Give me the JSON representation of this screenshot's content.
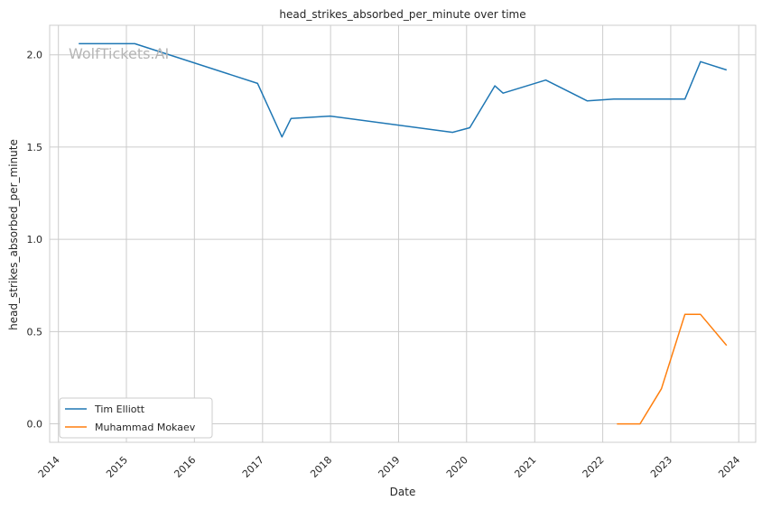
{
  "watermark": "WolfTickets.AI",
  "chart_data": {
    "type": "line",
    "title": "head_strikes_absorbed_per_minute over time",
    "xlabel": "Date",
    "ylabel": "head_strikes_absorbed_per_minute",
    "x_ticks": [
      "2014",
      "2015",
      "2016",
      "2017",
      "2018",
      "2019",
      "2020",
      "2021",
      "2022",
      "2023",
      "2024"
    ],
    "y_ticks": [
      "0.0",
      "0.5",
      "1.0",
      "1.5",
      "2.0"
    ],
    "xlim": [
      "2013-11-15",
      "2024-04-01"
    ],
    "ylim": [
      -0.1,
      2.16
    ],
    "grid": true,
    "legend_position": "lower-left",
    "series": [
      {
        "name": "Tim Elliott",
        "color": "#1f77b4",
        "points": [
          {
            "x": "2014-04-20",
            "y": 2.06
          },
          {
            "x": "2015-02-15",
            "y": 2.06
          },
          {
            "x": "2016-12-05",
            "y": 1.845
          },
          {
            "x": "2017-04-15",
            "y": 1.555
          },
          {
            "x": "2017-06-03",
            "y": 1.655
          },
          {
            "x": "2017-12-30",
            "y": 1.668
          },
          {
            "x": "2019-10-18",
            "y": 1.58
          },
          {
            "x": "2020-01-18",
            "y": 1.605
          },
          {
            "x": "2020-06-01",
            "y": 1.832
          },
          {
            "x": "2020-07-15",
            "y": 1.792
          },
          {
            "x": "2021-03-01",
            "y": 1.863
          },
          {
            "x": "2021-10-10",
            "y": 1.75
          },
          {
            "x": "2022-03-01",
            "y": 1.76
          },
          {
            "x": "2023-03-18",
            "y": 1.76
          },
          {
            "x": "2023-06-10",
            "y": 1.963
          },
          {
            "x": "2023-10-28",
            "y": 1.918
          }
        ]
      },
      {
        "name": "Muhammad Mokaev",
        "color": "#ff7f0e",
        "points": [
          {
            "x": "2022-03-18",
            "y": 0.0
          },
          {
            "x": "2022-07-20",
            "y": 0.0
          },
          {
            "x": "2022-11-12",
            "y": 0.19
          },
          {
            "x": "2023-03-18",
            "y": 0.593
          },
          {
            "x": "2023-06-10",
            "y": 0.593
          },
          {
            "x": "2023-10-28",
            "y": 0.425
          }
        ]
      }
    ]
  }
}
